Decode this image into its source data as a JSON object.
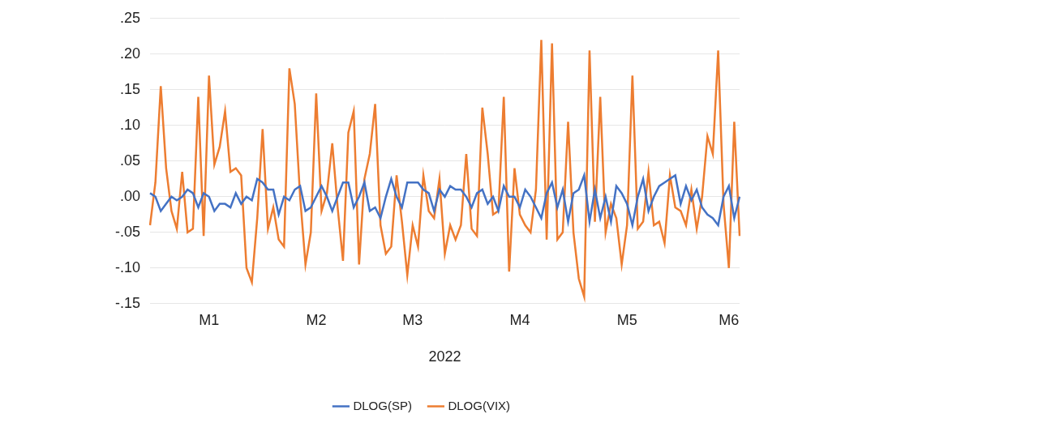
{
  "chart_data": {
    "type": "line",
    "x_label": "2022",
    "categories": [
      null,
      null,
      null,
      null,
      null,
      null,
      null,
      null,
      null,
      null,
      null,
      "M1",
      null,
      null,
      null,
      null,
      null,
      null,
      null,
      null,
      null,
      null,
      null,
      null,
      null,
      null,
      null,
      null,
      null,
      null,
      null,
      "M2",
      null,
      null,
      null,
      null,
      null,
      null,
      null,
      null,
      null,
      null,
      null,
      null,
      null,
      null,
      null,
      null,
      null,
      "M3",
      null,
      null,
      null,
      null,
      null,
      null,
      null,
      null,
      null,
      null,
      null,
      null,
      null,
      null,
      null,
      null,
      null,
      null,
      null,
      "M4",
      null,
      null,
      null,
      null,
      null,
      null,
      null,
      null,
      null,
      null,
      null,
      null,
      null,
      null,
      null,
      null,
      null,
      null,
      null,
      "M5",
      null,
      null,
      null,
      null,
      null,
      null,
      null,
      null,
      null,
      null,
      null,
      null,
      null,
      null,
      null,
      null,
      null,
      null,
      "M6",
      null,
      null
    ],
    "series": [
      {
        "name": "DLOG(SP)",
        "color": "#4472c4",
        "values": [
          0.005,
          0.0,
          -0.02,
          -0.01,
          0.0,
          -0.005,
          0.0,
          0.01,
          0.005,
          -0.015,
          0.005,
          0.0,
          -0.02,
          -0.01,
          -0.01,
          -0.015,
          0.005,
          -0.01,
          0.0,
          -0.005,
          0.025,
          0.02,
          0.01,
          0.01,
          -0.025,
          0.0,
          -0.005,
          0.01,
          0.015,
          -0.02,
          -0.015,
          0.0,
          0.015,
          0.0,
          -0.02,
          0.0,
          0.02,
          0.02,
          -0.015,
          0.0,
          0.02,
          -0.02,
          -0.015,
          -0.03,
          0.0,
          0.025,
          0.0,
          -0.015,
          0.02,
          0.02,
          0.02,
          0.01,
          0.005,
          -0.02,
          0.01,
          0.0,
          0.015,
          0.01,
          0.01,
          0.0,
          -0.015,
          0.005,
          0.01,
          -0.01,
          0.0,
          -0.02,
          0.015,
          0.0,
          0.0,
          -0.015,
          0.01,
          0.0,
          -0.015,
          -0.03,
          0.005,
          0.02,
          -0.015,
          0.01,
          -0.035,
          0.005,
          0.01,
          0.03,
          -0.035,
          0.01,
          -0.03,
          0.0,
          -0.035,
          0.015,
          0.005,
          -0.01,
          -0.04,
          0.0,
          0.025,
          -0.02,
          0.0,
          0.015,
          0.02,
          0.025,
          0.03,
          -0.01,
          0.015,
          -0.005,
          0.01,
          -0.015,
          -0.025,
          -0.03,
          -0.04,
          0.0,
          0.015,
          -0.03,
          0.0
        ]
      },
      {
        "name": "DLOG(VIX)",
        "color": "#ed7d31",
        "values": [
          -0.04,
          0.02,
          0.155,
          0.04,
          -0.02,
          -0.045,
          0.035,
          -0.05,
          -0.045,
          0.14,
          -0.055,
          0.17,
          0.045,
          0.07,
          0.12,
          0.035,
          0.04,
          0.03,
          -0.1,
          -0.12,
          -0.03,
          0.095,
          -0.045,
          -0.015,
          -0.06,
          -0.07,
          0.18,
          0.13,
          0.0,
          -0.095,
          -0.05,
          0.145,
          -0.02,
          0.005,
          0.075,
          -0.015,
          -0.09,
          0.09,
          0.12,
          -0.095,
          0.025,
          0.06,
          0.13,
          -0.04,
          -0.08,
          -0.07,
          0.03,
          -0.035,
          -0.11,
          -0.04,
          -0.07,
          0.03,
          -0.02,
          -0.03,
          0.025,
          -0.08,
          -0.04,
          -0.06,
          -0.04,
          0.06,
          -0.045,
          -0.055,
          0.125,
          0.06,
          -0.025,
          -0.02,
          0.14,
          -0.105,
          0.04,
          -0.025,
          -0.04,
          -0.05,
          0.01,
          0.22,
          -0.06,
          0.215,
          -0.06,
          -0.05,
          0.105,
          -0.05,
          -0.115,
          -0.14,
          0.205,
          -0.035,
          0.14,
          -0.05,
          -0.01,
          -0.03,
          -0.095,
          -0.04,
          0.17,
          -0.045,
          -0.035,
          0.035,
          -0.04,
          -0.035,
          -0.065,
          0.03,
          -0.015,
          -0.02,
          -0.04,
          0.01,
          -0.045,
          0.0,
          0.085,
          0.06,
          0.205,
          -0.01,
          -0.1,
          0.105,
          -0.055
        ]
      }
    ],
    "ylim": [
      -0.15,
      0.25
    ],
    "yticks": [
      {
        "value": 0.25,
        "label": ".25"
      },
      {
        "value": 0.2,
        "label": ".20"
      },
      {
        "value": 0.15,
        "label": ".15"
      },
      {
        "value": 0.1,
        "label": ".10"
      },
      {
        "value": 0.05,
        "label": ".05"
      },
      {
        "value": 0,
        "label": ".00"
      },
      {
        "value": -0.05,
        "label": "-.05"
      },
      {
        "value": -0.1,
        "label": "-.10"
      },
      {
        "value": -0.15,
        "label": "-.15"
      }
    ],
    "grid": true,
    "legend": "bottom"
  }
}
